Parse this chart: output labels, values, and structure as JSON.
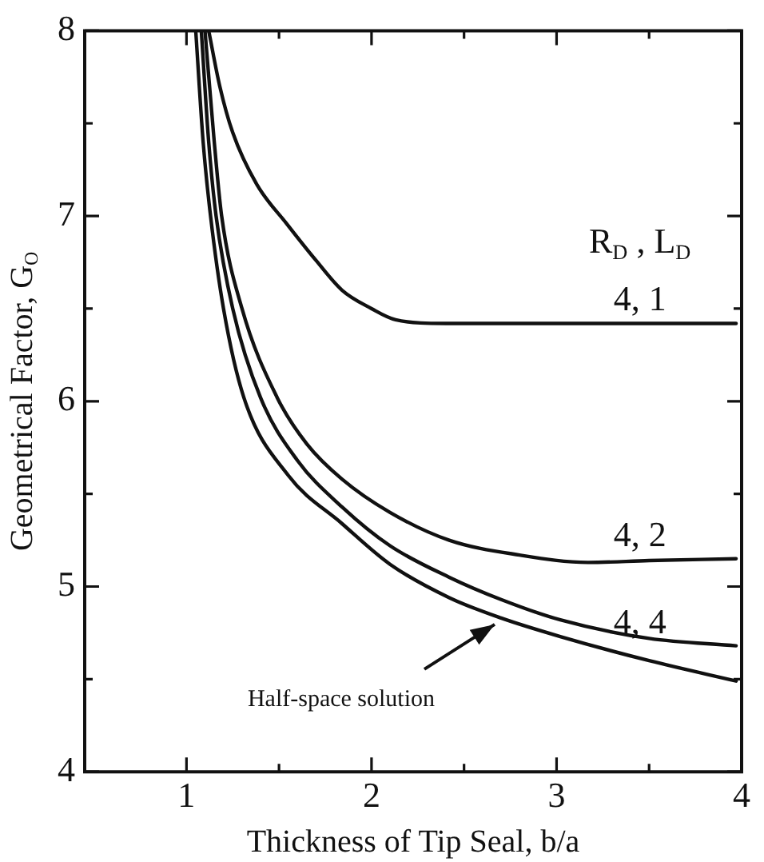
{
  "chart_data": {
    "type": "line",
    "xlabel": "Thickness of Tip Seal, b/a",
    "ylabel": "Geometrical Factor, G$_{O}$",
    "legend_title": "R$_{D}$ , L$_{D}$",
    "xlim": [
      0.45,
      4
    ],
    "ylim": [
      4,
      8
    ],
    "xticks": [
      1,
      {
        "value": 1.5,
        "label": null
      },
      2,
      {
        "value": 2.5,
        "label": null
      },
      3,
      {
        "value": 3.5,
        "label": null
      },
      4
    ],
    "yticks": [
      4,
      {
        "value": 4.5,
        "label": null
      },
      5,
      {
        "value": 5.5,
        "label": null
      },
      6,
      {
        "value": 6.5,
        "label": null
      },
      7,
      {
        "value": 7.5,
        "label": null
      },
      8
    ],
    "grid": false,
    "legend": "right",
    "marker": "none",
    "line_style": "solid",
    "series": [
      {
        "name": "4, 1",
        "color": "#111111",
        "x": [
          1.12,
          1.18,
          1.25,
          1.38,
          1.54,
          1.7,
          1.84,
          2.0,
          2.13,
          2.4,
          3.0,
          3.5,
          3.97
        ],
        "values": [
          8,
          7.7,
          7.45,
          7.17,
          6.96,
          6.76,
          6.6,
          6.5,
          6.44,
          6.42,
          6.42,
          6.42,
          6.42
        ]
      },
      {
        "name": "4, 2",
        "color": "#111111",
        "x": [
          1.1,
          1.15,
          1.19,
          1.3,
          1.49,
          1.65,
          1.84,
          2.1,
          2.42,
          2.8,
          3.17,
          3.5,
          3.97
        ],
        "values": [
          8,
          7.4,
          7.0,
          6.5,
          6.02,
          5.77,
          5.58,
          5.4,
          5.25,
          5.17,
          5.13,
          5.14,
          5.15
        ]
      },
      {
        "name": "4, 4",
        "color": "#111111",
        "x": [
          1.08,
          1.12,
          1.16,
          1.25,
          1.4,
          1.6,
          1.84,
          2.1,
          2.42,
          2.7,
          3.02,
          3.5,
          3.97
        ],
        "values": [
          8,
          7.4,
          7.0,
          6.5,
          6.02,
          5.68,
          5.43,
          5.22,
          5.05,
          4.93,
          4.82,
          4.72,
          4.68
        ]
      },
      {
        "color": "#111111",
        "x": [
          1.05,
          1.09,
          1.13,
          1.2,
          1.31,
          1.55,
          1.84,
          2.1,
          2.42,
          2.7,
          3.02,
          3.5,
          3.97
        ],
        "values": [
          8,
          7.4,
          7.0,
          6.5,
          6.02,
          5.6,
          5.34,
          5.12,
          4.94,
          4.83,
          4.73,
          4.6,
          4.49
        ]
      }
    ],
    "annotations": [
      {
        "text": "Half-space solution",
        "x": 2.7,
        "y": 4.83
      }
    ]
  }
}
